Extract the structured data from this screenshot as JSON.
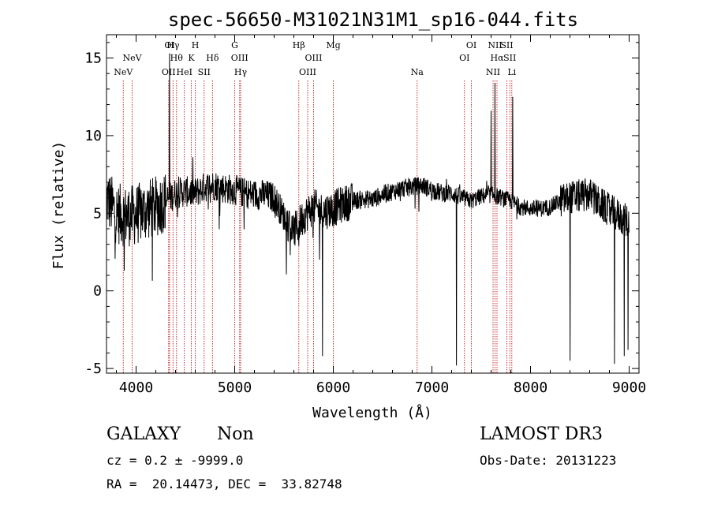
{
  "chart_data": {
    "type": "line",
    "title": "spec-56650-M31021N31M1_sp16-044.fits",
    "xlabel": "Wavelength (Å)",
    "ylabel": "Flux (relative)",
    "xlim": [
      3700,
      9100
    ],
    "ylim": [
      -5.3,
      16.5
    ],
    "xticks": [
      4000,
      5000,
      6000,
      7000,
      8000,
      9000
    ],
    "yticks": [
      -5,
      0,
      5,
      10,
      15
    ],
    "spectrum_range": [
      3700,
      9000
    ],
    "spectrum_anchors": [
      [
        3700,
        6.0
      ],
      [
        3800,
        5.0
      ],
      [
        3900,
        4.8
      ],
      [
        4000,
        4.9
      ],
      [
        4100,
        5.2
      ],
      [
        4200,
        5.4
      ],
      [
        4300,
        5.8
      ],
      [
        4400,
        6.3
      ],
      [
        4500,
        6.4
      ],
      [
        4600,
        6.3
      ],
      [
        4700,
        6.7
      ],
      [
        4800,
        6.8
      ],
      [
        4900,
        6.6
      ],
      [
        5000,
        6.5
      ],
      [
        5100,
        6.3
      ],
      [
        5200,
        6.2
      ],
      [
        5300,
        6.2
      ],
      [
        5400,
        6.0
      ],
      [
        5500,
        4.8
      ],
      [
        5600,
        3.8
      ],
      [
        5700,
        4.8
      ],
      [
        5800,
        5.4
      ],
      [
        5900,
        5.1
      ],
      [
        6000,
        5.3
      ],
      [
        6100,
        5.6
      ],
      [
        6200,
        5.8
      ],
      [
        6300,
        5.9
      ],
      [
        6400,
        5.9
      ],
      [
        6500,
        6.2
      ],
      [
        6600,
        6.4
      ],
      [
        6700,
        6.6
      ],
      [
        6800,
        6.7
      ],
      [
        6900,
        6.8
      ],
      [
        7000,
        6.5
      ],
      [
        7100,
        6.3
      ],
      [
        7200,
        6.3
      ],
      [
        7300,
        6.0
      ],
      [
        7400,
        5.8
      ],
      [
        7500,
        6.1
      ],
      [
        7600,
        6.2
      ],
      [
        7700,
        6.0
      ],
      [
        7800,
        5.8
      ],
      [
        7900,
        5.4
      ],
      [
        8000,
        5.3
      ],
      [
        8100,
        5.3
      ],
      [
        8200,
        5.4
      ],
      [
        8300,
        5.8
      ],
      [
        8400,
        6.0
      ],
      [
        8500,
        6.1
      ],
      [
        8600,
        6.2
      ],
      [
        8700,
        5.6
      ],
      [
        8800,
        5.2
      ],
      [
        8900,
        4.8
      ],
      [
        9000,
        4.4
      ]
    ],
    "spectrum_features": [
      {
        "x": 4340,
        "y": 15.3
      },
      {
        "x": 5650,
        "y": 2.9
      },
      {
        "x": 5890,
        "y": -4.2
      },
      {
        "x": 7250,
        "y": -4.8
      },
      {
        "x": 7600,
        "y": 11.6
      },
      {
        "x": 7640,
        "y": 13.4
      },
      {
        "x": 7820,
        "y": 12.5
      },
      {
        "x": 8400,
        "y": -4.5
      },
      {
        "x": 8850,
        "y": -4.7
      },
      {
        "x": 8950,
        "y": -4.2
      },
      {
        "x": 8990,
        "y": -3.8
      }
    ],
    "emission_lines": [
      {
        "label": "NeV",
        "x": 3870,
        "row": 3
      },
      {
        "label": "NeV",
        "x": 3960,
        "row": 2
      },
      {
        "label": "OII",
        "x": 4330,
        "row": 3
      },
      {
        "label": "OI",
        "x": 4340,
        "row": 1
      },
      {
        "label": "Hγ",
        "x": 4375,
        "row": 1
      },
      {
        "label": "Hθ",
        "x": 4410,
        "row": 2
      },
      {
        "label": "HeI",
        "x": 4490,
        "row": 3
      },
      {
        "label": "K",
        "x": 4560,
        "row": 2
      },
      {
        "label": "H",
        "x": 4600,
        "row": 1
      },
      {
        "label": "SII",
        "x": 4690,
        "row": 3
      },
      {
        "label": "Hδ",
        "x": 4775,
        "row": 2
      },
      {
        "label": "G",
        "x": 5000,
        "row": 1
      },
      {
        "label": "OIII",
        "x": 5050,
        "row": 2
      },
      {
        "label": "Hγ",
        "x": 5060,
        "row": 3
      },
      {
        "label": "Hβ",
        "x": 5650,
        "row": 1
      },
      {
        "label": "OIII",
        "x": 5740,
        "row": 3
      },
      {
        "label": "OIII",
        "x": 5800,
        "row": 2
      },
      {
        "label": "Mg",
        "x": 6000,
        "row": 1
      },
      {
        "label": "Na",
        "x": 6850,
        "row": 3
      },
      {
        "label": "OI",
        "x": 7330,
        "row": 2
      },
      {
        "label": "OI",
        "x": 7400,
        "row": 1
      },
      {
        "label": "NII",
        "x": 7620,
        "row": 3
      },
      {
        "label": "NII",
        "x": 7640,
        "row": 1
      },
      {
        "label": "Hα",
        "x": 7660,
        "row": 2
      },
      {
        "label": "SII",
        "x": 7760,
        "row": 1
      },
      {
        "label": "SII",
        "x": 7790,
        "row": 2
      },
      {
        "label": "Li",
        "x": 7810,
        "row": 3
      }
    ]
  },
  "info": {
    "class": "GALAXY",
    "subclass": "Non",
    "cz": "cz = 0.2 ± -9999.0",
    "radec": "RA =  20.14473, DEC =  33.82748",
    "survey": "LAMOST DR3",
    "obsdate": "Obs-Date: 20131223"
  },
  "colors": {
    "line_marker": "#c83232",
    "spectrum": "#000000"
  }
}
